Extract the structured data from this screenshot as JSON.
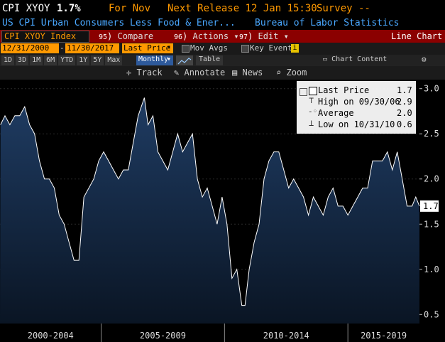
{
  "header": {
    "ticker": "CPI XYOY",
    "value": "1.7%",
    "for_label": "For Nov",
    "next_release": "Next Release 12 Jan 15:30",
    "survey": "Survey --",
    "description": "US CPI Urban Consumers Less Food & Ener...",
    "source": "Bureau of Labor Statistics"
  },
  "toolbar": {
    "index_input": "CPI XYOY Index",
    "compare_label": "Compare",
    "actions_label": "Actions",
    "edit_label": "Edit",
    "view_label": "Line Chart",
    "compare_num": "95",
    "actions_num": "96",
    "edit_num": "97"
  },
  "range": {
    "start": "12/31/2000",
    "end": "11/30/2017",
    "field": "Last Price",
    "mov_avgs": "Mov Avgs",
    "key_events": "Key Events"
  },
  "periods": [
    "1D",
    "3D",
    "1M",
    "6M",
    "YTD",
    "1Y",
    "5Y",
    "Max"
  ],
  "frequency": "Monthly",
  "table_label": "Table",
  "chart_content_label": "Chart Content",
  "tools": {
    "track": "Track",
    "annotate": "Annotate",
    "news": "News",
    "zoom": "Zoom"
  },
  "legend": {
    "last_price": {
      "label": "Last Price",
      "value": "1.7"
    },
    "high": {
      "label": "High on 09/30/06",
      "value": "2.9"
    },
    "average": {
      "label": "Average",
      "value": "2.0"
    },
    "low": {
      "label": "Low on 10/31/10",
      "value": "0.6"
    }
  },
  "last_value_tag": "1.7",
  "colors": {
    "orange": "#ff9900",
    "red_bar": "#8b0000",
    "fill_top": "#1f3c63",
    "fill_bottom": "#0a1524",
    "line": "#ffffff",
    "blue_text": "#4aa8ff"
  },
  "chart_data": {
    "type": "area",
    "y_ticks": [
      0.5,
      1.0,
      1.5,
      2.0,
      2.5,
      3.0
    ],
    "ylim": [
      0.4,
      3.1
    ],
    "x_labels": [
      "2000-2004",
      "2005-2009",
      "2010-2014",
      "2015-2019"
    ],
    "x_range": [
      2000.9,
      2017.9
    ],
    "series": [
      {
        "x": [
          2000.92,
          2001.1,
          2001.3,
          2001.5,
          2001.7,
          2001.9,
          2002.1,
          2002.3,
          2002.5,
          2002.7,
          2002.9,
          2003.1,
          2003.3,
          2003.5,
          2003.7,
          2003.9,
          2004.1,
          2004.3,
          2004.5,
          2004.7,
          2004.9,
          2005.1,
          2005.3,
          2005.5,
          2005.7,
          2005.9,
          2006.1,
          2006.3,
          2006.5,
          2006.75,
          2006.9,
          2007.1,
          2007.3,
          2007.5,
          2007.7,
          2007.9,
          2008.1,
          2008.3,
          2008.5,
          2008.7,
          2008.9,
          2009.1,
          2009.3,
          2009.5,
          2009.7,
          2009.9,
          2010.1,
          2010.3,
          2010.5,
          2010.7,
          2010.83,
          2011.0,
          2011.2,
          2011.4,
          2011.6,
          2011.8,
          2012.0,
          2012.2,
          2012.4,
          2012.6,
          2012.8,
          2013.0,
          2013.2,
          2013.4,
          2013.6,
          2013.8,
          2014.0,
          2014.2,
          2014.4,
          2014.6,
          2014.8,
          2015.0,
          2015.2,
          2015.4,
          2015.6,
          2015.8,
          2016.0,
          2016.2,
          2016.4,
          2016.6,
          2016.8,
          2017.0,
          2017.2,
          2017.4,
          2017.6,
          2017.75,
          2017.9
        ],
        "y": [
          2.6,
          2.7,
          2.6,
          2.7,
          2.7,
          2.8,
          2.6,
          2.5,
          2.2,
          2.0,
          2.0,
          1.9,
          1.6,
          1.5,
          1.3,
          1.1,
          1.1,
          1.8,
          1.9,
          2.0,
          2.2,
          2.3,
          2.2,
          2.1,
          2.0,
          2.1,
          2.1,
          2.4,
          2.7,
          2.9,
          2.6,
          2.7,
          2.3,
          2.2,
          2.1,
          2.3,
          2.5,
          2.3,
          2.4,
          2.5,
          2.0,
          1.8,
          1.9,
          1.7,
          1.5,
          1.8,
          1.5,
          0.9,
          1.0,
          0.6,
          0.6,
          1.0,
          1.3,
          1.5,
          2.0,
          2.2,
          2.3,
          2.3,
          2.1,
          1.9,
          2.0,
          1.9,
          1.8,
          1.6,
          1.8,
          1.7,
          1.6,
          1.8,
          1.9,
          1.7,
          1.7,
          1.6,
          1.7,
          1.8,
          1.9,
          1.9,
          2.2,
          2.2,
          2.2,
          2.3,
          2.1,
          2.3,
          2.0,
          1.7,
          1.7,
          1.8,
          1.7
        ]
      }
    ]
  }
}
